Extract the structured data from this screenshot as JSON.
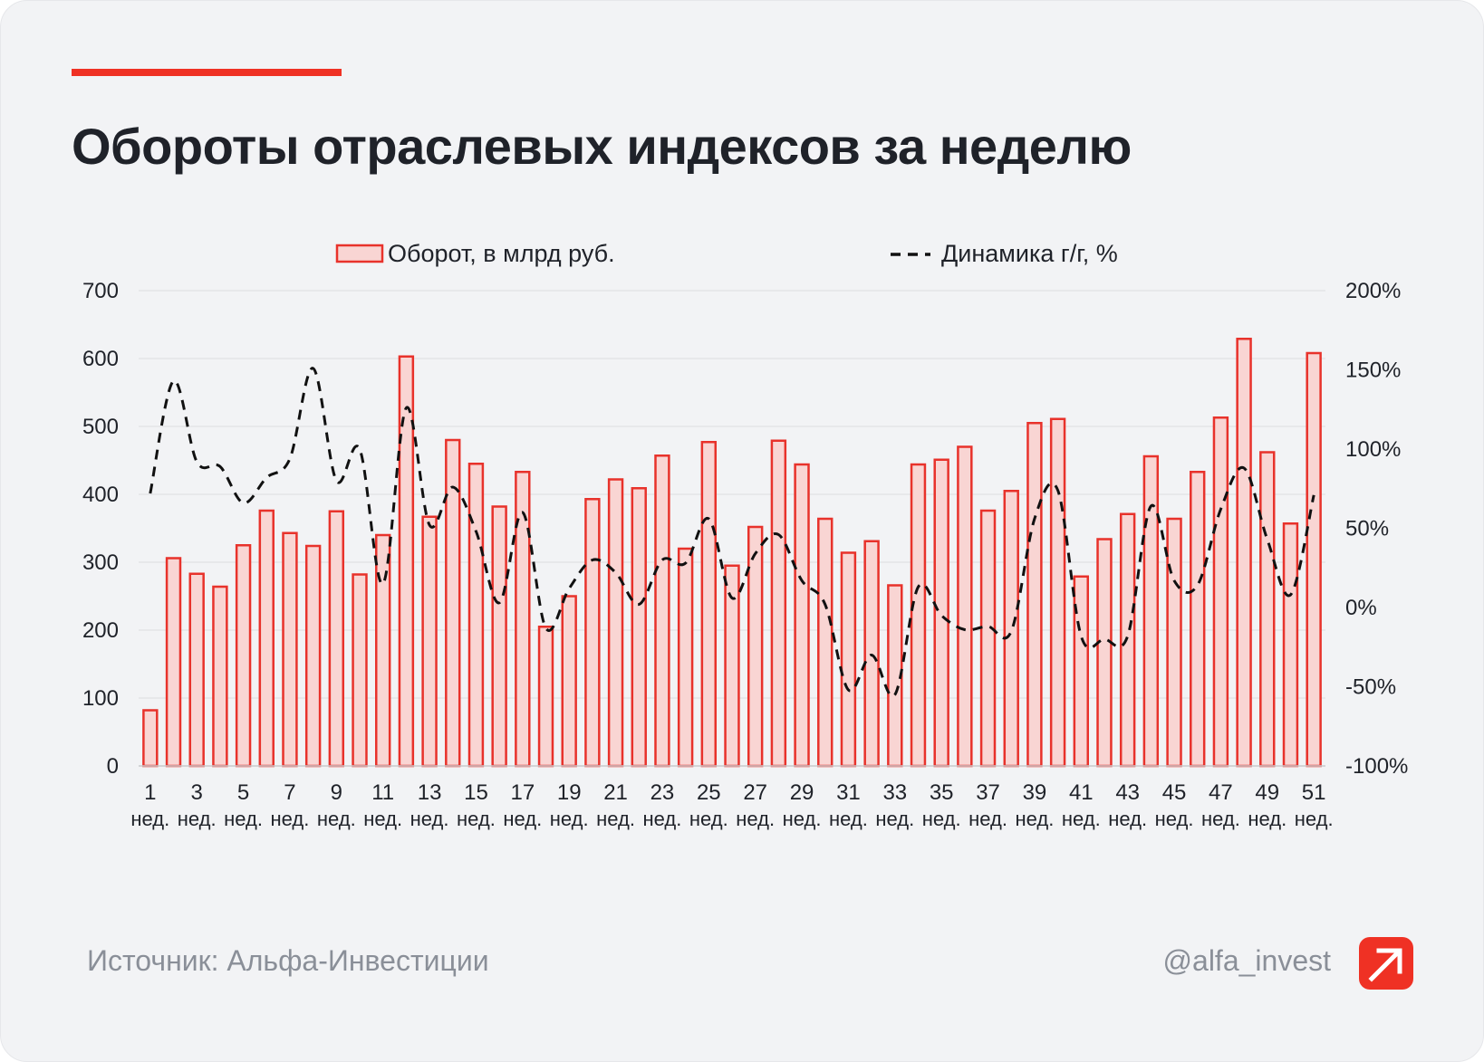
{
  "title": "Обороты отраслевых индексов за неделю",
  "source": "Источник: Альфа-Инвестиции",
  "handle": "@alfa_invest",
  "colors": {
    "accent": "#ef3124",
    "bar_fill": "#f9d5d3",
    "bar_stroke": "#e8322b",
    "line": "#111111",
    "background": "#f2f3f5",
    "text": "#1f2229",
    "muted": "#8a8f98",
    "grid": "#dcdde0"
  },
  "logo_icon": "arrow-up-right-icon",
  "chart_data": {
    "type": "bar",
    "title": "",
    "legend_position": "top",
    "grid": true,
    "x": [
      1,
      2,
      3,
      4,
      5,
      6,
      7,
      8,
      9,
      10,
      11,
      12,
      13,
      14,
      15,
      16,
      17,
      18,
      19,
      20,
      21,
      22,
      23,
      24,
      25,
      26,
      27,
      28,
      29,
      30,
      31,
      32,
      33,
      34,
      35,
      36,
      37,
      38,
      39,
      40,
      41,
      42,
      43,
      44,
      45,
      46,
      47,
      48,
      49,
      50,
      51
    ],
    "x_tick_labels": [
      {
        "num": "1",
        "unit": "нед."
      },
      {
        "num": "3",
        "unit": "нед."
      },
      {
        "num": "5",
        "unit": "нед."
      },
      {
        "num": "7",
        "unit": "нед."
      },
      {
        "num": "9",
        "unit": "нед."
      },
      {
        "num": "11",
        "unit": "нед."
      },
      {
        "num": "13",
        "unit": "нед."
      },
      {
        "num": "15",
        "unit": "нед."
      },
      {
        "num": "17",
        "unit": "нед."
      },
      {
        "num": "19",
        "unit": "нед."
      },
      {
        "num": "21",
        "unit": "нед."
      },
      {
        "num": "23",
        "unit": "нед."
      },
      {
        "num": "25",
        "unit": "нед."
      },
      {
        "num": "27",
        "unit": "нед."
      },
      {
        "num": "29",
        "unit": "нед."
      },
      {
        "num": "31",
        "unit": "нед."
      },
      {
        "num": "33",
        "unit": "нед."
      },
      {
        "num": "35",
        "unit": "нед."
      },
      {
        "num": "37",
        "unit": "нед."
      },
      {
        "num": "39",
        "unit": "нед."
      },
      {
        "num": "41",
        "unit": "нед."
      },
      {
        "num": "43",
        "unit": "нед."
      },
      {
        "num": "45",
        "unit": "нед."
      },
      {
        "num": "47",
        "unit": "нед."
      },
      {
        "num": "49",
        "unit": "нед."
      },
      {
        "num": "51",
        "unit": "нед."
      }
    ],
    "y_left": {
      "min": 0,
      "max": 700,
      "ticks": [
        "0",
        "100",
        "200",
        "300",
        "400",
        "500",
        "600",
        "700"
      ]
    },
    "y_right": {
      "min": -100,
      "max": 200,
      "ticks": [
        "-100%",
        "-50%",
        "0%",
        "50%",
        "100%",
        "150%",
        "200%"
      ]
    },
    "series": [
      {
        "name": "Оборот, в млрд руб.",
        "type": "bar",
        "axis": "left",
        "values": [
          82,
          306,
          283,
          264,
          325,
          376,
          343,
          324,
          375,
          282,
          340,
          603,
          367,
          480,
          445,
          382,
          433,
          205,
          250,
          393,
          422,
          409,
          457,
          320,
          477,
          295,
          352,
          479,
          444,
          364,
          314,
          331,
          266,
          444,
          451,
          470,
          376,
          405,
          505,
          511,
          279,
          334,
          371,
          456,
          364,
          433,
          513,
          629,
          462,
          357,
          608
        ]
      },
      {
        "name": "Динамика г/г, %",
        "type": "line",
        "style": "dashed",
        "axis": "right",
        "values": [
          72,
          143,
          92,
          89,
          66,
          82,
          94,
          151,
          80,
          100,
          15,
          126,
          52,
          76,
          48,
          3,
          60,
          -13,
          12,
          30,
          22,
          2,
          30,
          28,
          56,
          6,
          34,
          46,
          17,
          2,
          -52,
          -30,
          -55,
          13,
          -5,
          -14,
          -12,
          -15,
          56,
          74,
          -18,
          -20,
          -18,
          64,
          17,
          14,
          62,
          88,
          43,
          8,
          71
        ]
      }
    ]
  }
}
